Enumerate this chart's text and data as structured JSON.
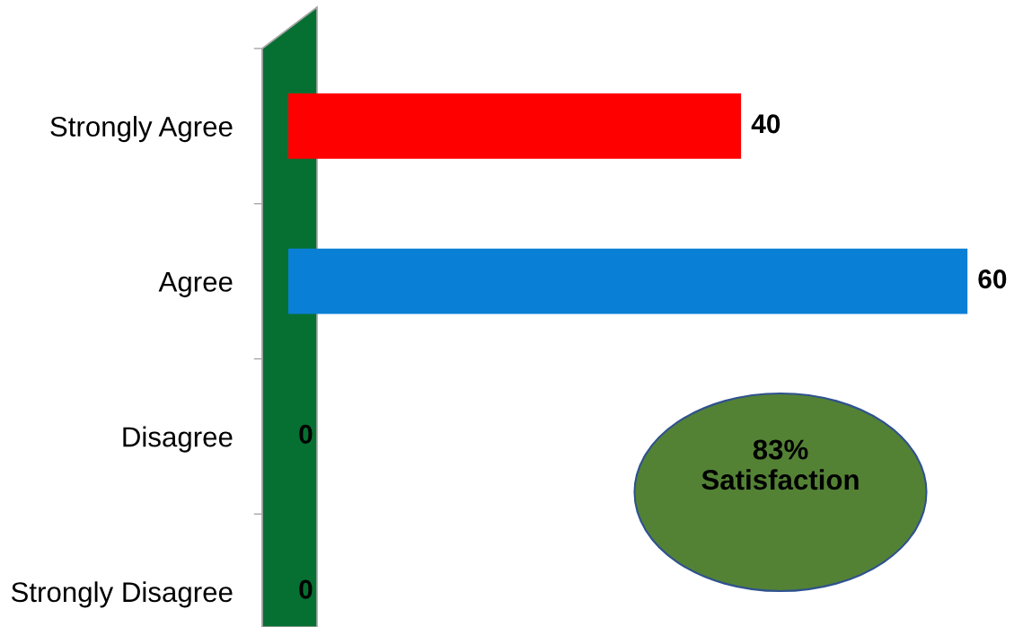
{
  "chart_data": {
    "type": "bar",
    "orientation": "horizontal",
    "categories": [
      "Strongly Agree",
      "Agree",
      "Disagree",
      "Strongly Disagree"
    ],
    "values": [
      40,
      60,
      0,
      0
    ],
    "colors": [
      "#ff0000",
      "#0a7fd6",
      "#a00000",
      "#a00000"
    ],
    "data_labels": true,
    "annotations": [
      "83%\nSatisfaction"
    ]
  }
}
